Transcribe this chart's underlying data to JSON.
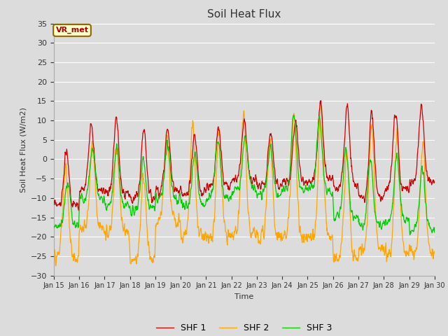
{
  "title": "Soil Heat Flux",
  "xlabel": "Time",
  "ylabel": "Soil Heat Flux (W/m2)",
  "ylim": [
    -30,
    35
  ],
  "yticks": [
    -30,
    -25,
    -20,
    -15,
    -10,
    -5,
    0,
    5,
    10,
    15,
    20,
    25,
    30,
    35
  ],
  "xtick_labels": [
    "Jan 15",
    "Jan 16",
    "Jan 17",
    "Jan 18",
    "Jan 19",
    "Jan 20",
    "Jan 21",
    "Jan 22",
    "Jan 23",
    "Jan 24",
    "Jan 25",
    "Jan 26",
    "Jan 27",
    "Jan 28",
    "Jan 29",
    "Jan 30"
  ],
  "colors": {
    "shf1": "#cc0000",
    "shf2": "#ffa500",
    "shf3": "#00cc00"
  },
  "legend_labels": [
    "SHF 1",
    "SHF 2",
    "SHF 3"
  ],
  "annotation_text": "VR_met",
  "annotation_bg": "#ffffcc",
  "annotation_border": "#886600",
  "plot_bg": "#dcdcdc",
  "grid_color": "#ffffff",
  "linewidth": 0.9,
  "title_fontsize": 11,
  "fig_bg": "#dcdcdc"
}
